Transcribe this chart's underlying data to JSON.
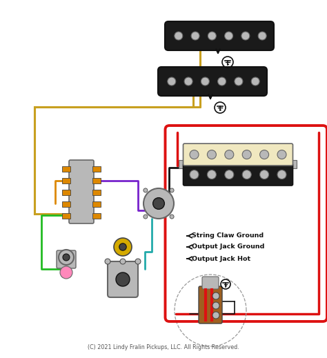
{
  "bg_color": "#ffffff",
  "copyright": "(C) 2021 Lindy Fralin Pickups, LLC. All Rights Reserved.",
  "labels": {
    "string_claw": "String Claw Ground",
    "output_jack_ground": "Output Jack Ground",
    "output_jack_hot": "Output Jack Hot"
  },
  "colors": {
    "red": "#dd1111",
    "black": "#111111",
    "gold": "#c8a020",
    "green": "#22bb22",
    "purple": "#7722cc",
    "blue": "#2244cc",
    "orange": "#dd8800",
    "teal": "#22aaaa",
    "pink": "#ff88bb",
    "yellow_cream": "#f0e8c0",
    "gray": "#999999",
    "silver": "#b8b8b8",
    "silver_dark": "#888888",
    "dark_gray": "#444444",
    "med_gray": "#666666",
    "pickup_black": "#1a1a1a",
    "brown_orange": "#b05010"
  },
  "figsize": [
    4.74,
    5.19
  ],
  "dpi": 100
}
